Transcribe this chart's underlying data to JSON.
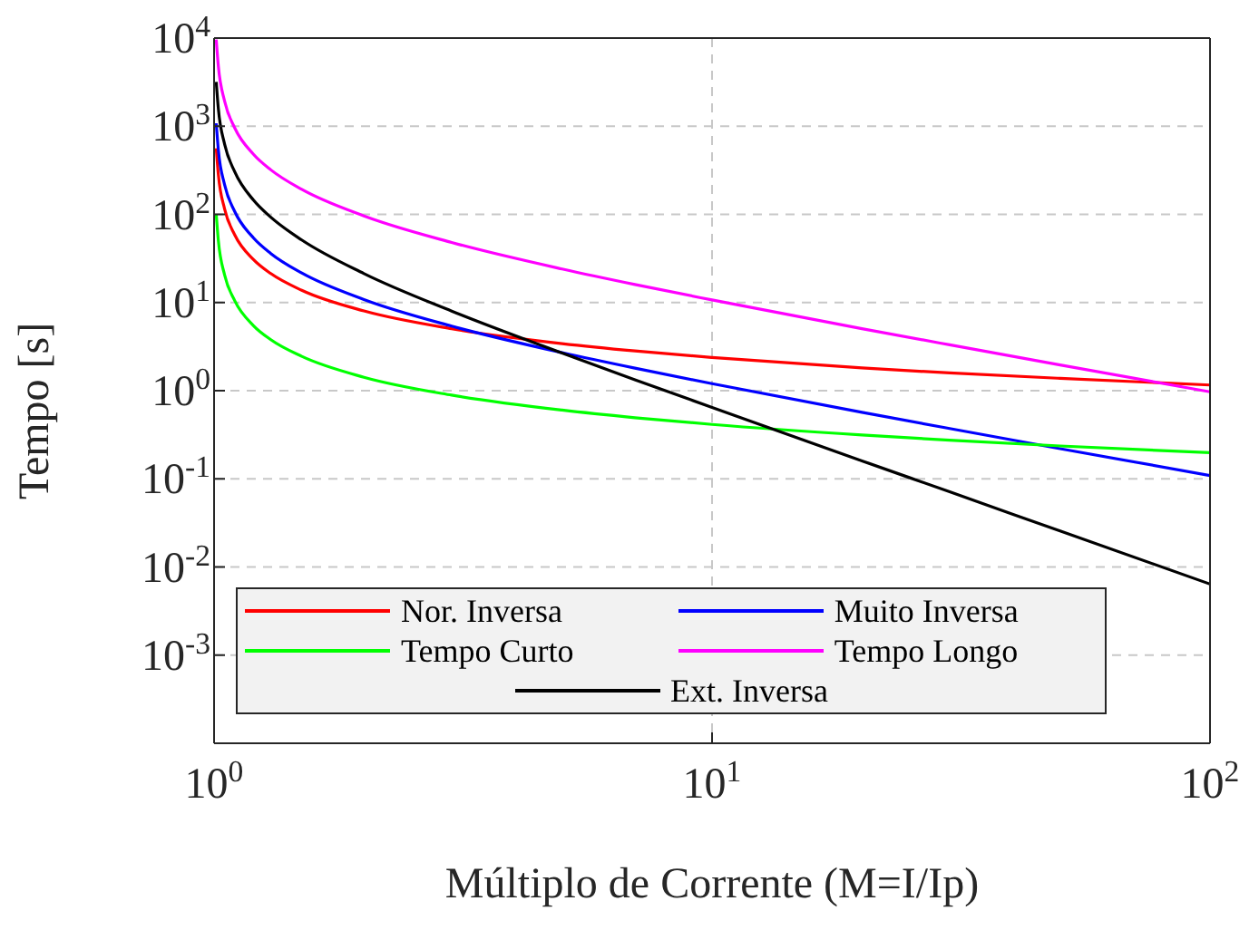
{
  "chart_data": {
    "type": "line",
    "xlabel": "Múltiplo de Corrente (M=I/Ip)",
    "ylabel": "Tempo [s]",
    "x": [
      1.01,
      1.02,
      1.05,
      1.1,
      1.2,
      1.3,
      1.5,
      2,
      3,
      5,
      7,
      10,
      20,
      30,
      50,
      100
    ],
    "series": [
      {
        "name": "Nor. Inversa",
        "color": "#ff0000",
        "values": [
          563,
          283,
          114.8,
          58.7,
          30.7,
          21.3,
          13.75,
          8.02,
          5.04,
          3.42,
          2.82,
          2.38,
          1.81,
          1.59,
          1.38,
          1.16
        ]
      },
      {
        "name": "Muito Inversa",
        "color": "#0000ff",
        "values": [
          1080,
          540,
          216,
          108,
          54,
          36,
          21.6,
          10.8,
          5.4,
          2.7,
          1.8,
          1.2,
          0.568,
          0.372,
          0.22,
          0.109
        ]
      },
      {
        "name": "Tempo Curto",
        "color": "#00ff00",
        "values": [
          100.5,
          50.5,
          20.5,
          10.5,
          5.46,
          3.79,
          2.45,
          1.42,
          0.89,
          0.602,
          0.494,
          0.414,
          0.314,
          0.274,
          0.236,
          0.198
        ]
      },
      {
        "name": "Tempo Longo",
        "color": "#ff00ff",
        "values": [
          9600,
          4800,
          1920,
          960,
          480,
          320,
          192,
          96,
          48,
          24,
          16,
          10.7,
          5.05,
          3.31,
          1.96,
          0.97
        ]
      },
      {
        "name": "Ext. Inversa",
        "color": "#000000",
        "values": [
          3184,
          1584,
          624,
          305,
          145,
          92.8,
          51.2,
          21.3,
          8,
          2.67,
          1.33,
          0.646,
          0.16,
          0.0712,
          0.0256,
          0.0064
        ]
      }
    ],
    "log": "xy",
    "xlim": [
      1,
      100
    ],
    "xticks": [
      {
        "value": 1,
        "label": "10$^{0}$"
      },
      {
        "value": 10,
        "label": "10$^{1}$"
      },
      {
        "value": 100,
        "label": "10$^{2}$"
      }
    ],
    "ylim": [
      0.0001,
      10000
    ],
    "yticks": [
      {
        "value": 0.001,
        "label": "10$^{-3}$"
      },
      {
        "value": 0.01,
        "label": "10$^{-2}$"
      },
      {
        "value": 0.1,
        "label": "10$^{-1}$"
      },
      {
        "value": 1,
        "label": "10$^{0}$"
      },
      {
        "value": 10,
        "label": "10$^{1}$"
      },
      {
        "value": 100,
        "label": "10$^{2}$"
      },
      {
        "value": 1000,
        "label": "10$^{3}$"
      },
      {
        "value": 10000,
        "label": "10$^{4}$"
      }
    ],
    "grid": true,
    "legend": "bottom",
    "line_style": "solid",
    "marker": "none"
  }
}
